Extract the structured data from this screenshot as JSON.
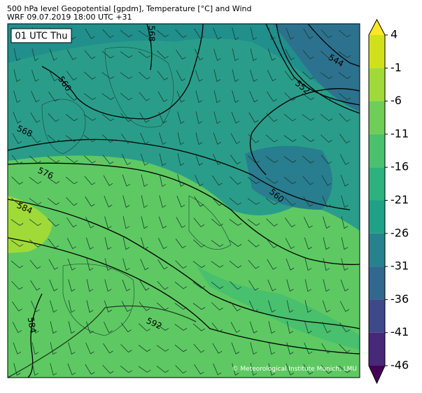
{
  "header": {
    "title": "500 hPa level Geopotential [gpdm], Temperature [°C] and Wind",
    "subtitle": "WRF 09.07.2019 18:00 UTC +31"
  },
  "map": {
    "time_label": "01 UTC Thu",
    "credit": "© Meteorological Institute Munich, LMU",
    "contour_labels": [
      "568",
      "560",
      "568",
      "576",
      "584",
      "560",
      "552",
      "544",
      "592",
      "584"
    ]
  },
  "colorbar": {
    "ticks": [
      4,
      -1,
      -6,
      -11,
      -16,
      -21,
      -26,
      -31,
      -36,
      -41,
      -46
    ],
    "colors": [
      "#fde725",
      "#d0e11c",
      "#a0da39",
      "#6ece58",
      "#4ac16d",
      "#2db27d",
      "#1fa187",
      "#26828e",
      "#31688e",
      "#3e4989",
      "#482878",
      "#440154"
    ]
  }
}
